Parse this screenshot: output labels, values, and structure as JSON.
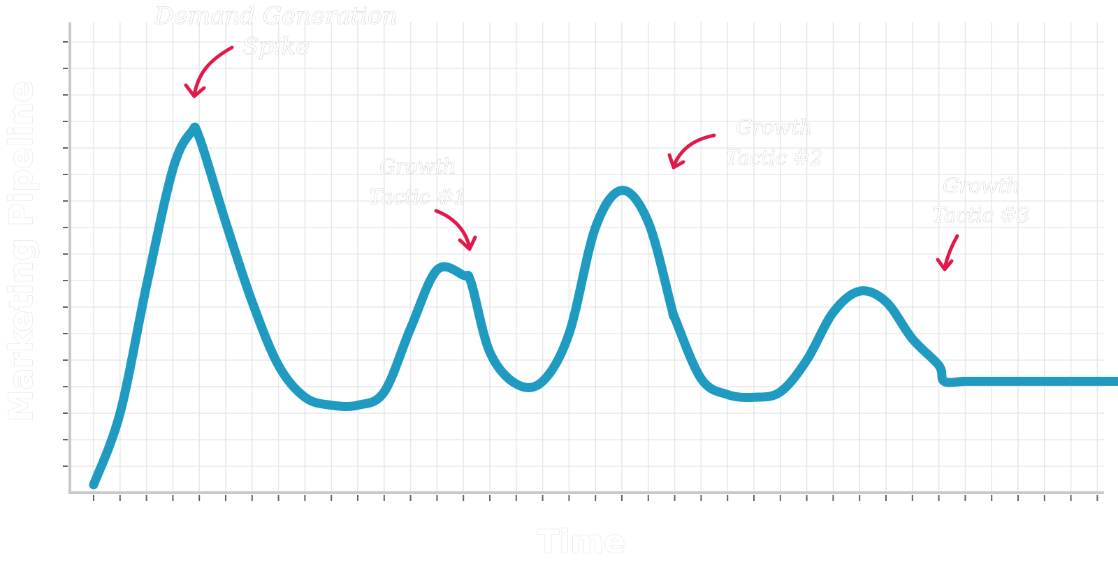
{
  "chart_data": {
    "type": "line",
    "title": "",
    "xlabel": "Time",
    "ylabel": "Marketing Pipeline",
    "grid": true,
    "xlim": [
      0,
      40
    ],
    "ylim": [
      0,
      17
    ],
    "x": [
      0,
      1,
      2,
      3,
      3.7,
      4,
      5,
      6,
      7,
      8,
      9,
      10,
      11,
      12,
      13,
      14,
      14.3,
      15,
      16,
      17,
      18,
      19,
      20,
      21,
      21.9,
      22,
      23,
      24,
      25,
      26,
      27,
      28,
      29,
      30,
      31,
      32,
      32.2,
      33,
      34,
      35,
      36,
      37,
      38,
      39,
      40
    ],
    "y": [
      0.3,
      3.0,
      7.8,
      12.2,
      13.6,
      13.4,
      10.2,
      7.2,
      4.8,
      3.6,
      3.3,
      3.3,
      3.8,
      6.2,
      8.4,
      8.2,
      7.9,
      5.3,
      4.1,
      4.2,
      6.0,
      10.0,
      11.4,
      10.2,
      6.9,
      6.6,
      4.3,
      3.7,
      3.6,
      3.8,
      5.0,
      6.8,
      7.6,
      7.2,
      5.8,
      4.8,
      4.2,
      4.2,
      4.2,
      4.2,
      4.2,
      4.2,
      4.2,
      4.2,
      4.2
    ],
    "series": [
      {
        "color": "#1f9ac0"
      }
    ],
    "annotations": [
      {
        "text": "Demand Generation Spike",
        "lines": [
          "Demand Generation",
          "Spike"
        ],
        "x": 3.7,
        "y": 13.6
      },
      {
        "text": "Growth Tactic #1",
        "lines": [
          "Growth",
          "Tactic #1"
        ],
        "x": 14.3,
        "y": 8.4
      },
      {
        "text": "Growth Tactic #2",
        "lines": [
          "Growth",
          "Tactic #2"
        ],
        "x": 21.9,
        "y": 11.4
      },
      {
        "text": "Growth Tactic #3",
        "lines": [
          "Growth",
          "Tactic #3"
        ],
        "x": 32.2,
        "y": 7.6
      }
    ]
  },
  "colors": {
    "line": "#1f9ac0",
    "annotation_arrow": "#e0194a",
    "grid": "#e6e8ea",
    "axis": "#c7c9cc"
  }
}
